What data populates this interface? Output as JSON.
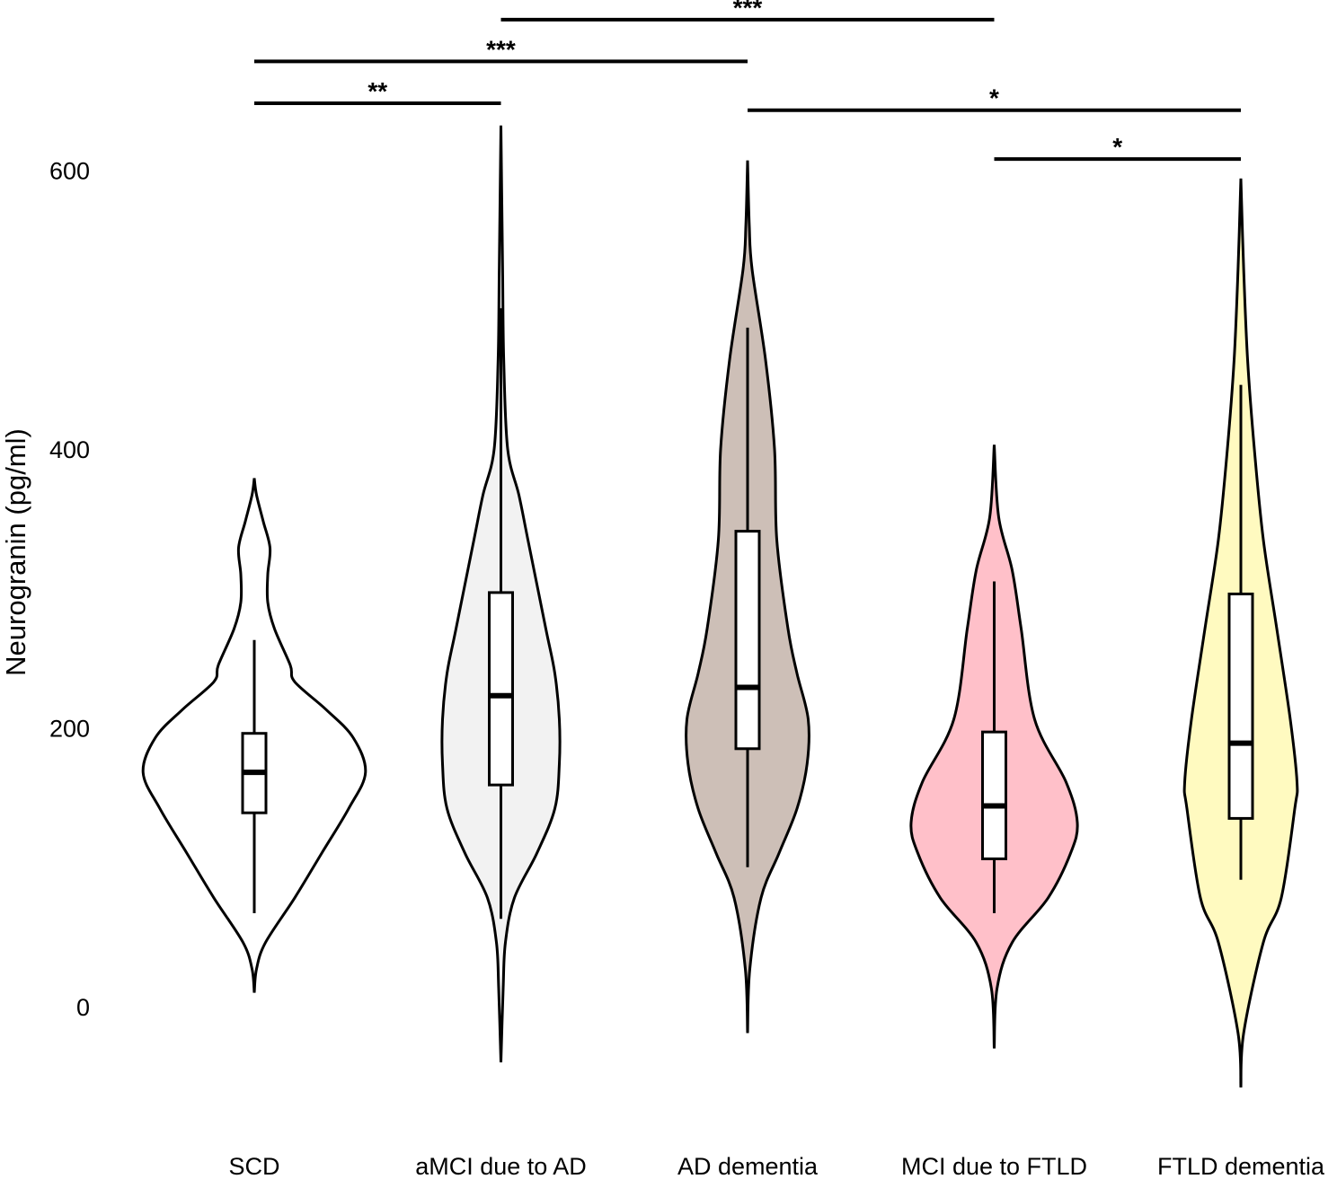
{
  "chart_data": {
    "type": "violin",
    "title": "",
    "xlabel": "",
    "ylabel": "Neurogranin (pg/ml)",
    "ylim": [
      -70,
      690
    ],
    "yticks": [
      0,
      200,
      400,
      600
    ],
    "ytick_labels": [
      "0",
      "200",
      "400",
      "600"
    ],
    "grid": false,
    "categories": [
      "SCD",
      "aMCI due to AD",
      "AD dementia",
      "MCI due to FTLD",
      "FTLD dementia"
    ],
    "groups": [
      {
        "name": "SCD",
        "color": "#ffffff",
        "box": {
          "whisker_low": 67,
          "q1": 139,
          "median": 168,
          "q3": 196,
          "whisker_high": 263
        },
        "density": [
          [
            10,
            0
          ],
          [
            27,
            0.02
          ],
          [
            46,
            0.1
          ],
          [
            78,
            0.36
          ],
          [
            110,
            0.6
          ],
          [
            142,
            0.84
          ],
          [
            168,
            0.99
          ],
          [
            193,
            0.88
          ],
          [
            213,
            0.64
          ],
          [
            233,
            0.36
          ],
          [
            245,
            0.32
          ],
          [
            271,
            0.18
          ],
          [
            290,
            0.12
          ],
          [
            310,
            0.12
          ],
          [
            329,
            0.14
          ],
          [
            348,
            0.08
          ],
          [
            367,
            0.02
          ],
          [
            379,
            0
          ]
        ]
      },
      {
        "name": "aMCI due to AD",
        "color": "#f2f2f2",
        "box": {
          "whisker_low": 63,
          "q1": 159,
          "median": 223,
          "q3": 297,
          "whisker_high": 501
        },
        "density": [
          [
            -40,
            0
          ],
          [
            13,
            0.02
          ],
          [
            46,
            0.04
          ],
          [
            78,
            0.12
          ],
          [
            110,
            0.32
          ],
          [
            142,
            0.48
          ],
          [
            174,
            0.52
          ],
          [
            206,
            0.52
          ],
          [
            239,
            0.48
          ],
          [
            271,
            0.4
          ],
          [
            335,
            0.24
          ],
          [
            367,
            0.16
          ],
          [
            400,
            0.06
          ],
          [
            464,
            0.025
          ],
          [
            529,
            0.015
          ],
          [
            632,
            0
          ]
        ]
      },
      {
        "name": "AD dementia",
        "color": "#cdbfb7",
        "box": {
          "whisker_low": 100,
          "q1": 185,
          "median": 229,
          "q3": 341,
          "whisker_high": 487
        },
        "density": [
          [
            -19,
            0
          ],
          [
            27,
            0.02
          ],
          [
            78,
            0.12
          ],
          [
            110,
            0.28
          ],
          [
            142,
            0.44
          ],
          [
            174,
            0.53
          ],
          [
            206,
            0.54
          ],
          [
            239,
            0.44
          ],
          [
            271,
            0.36
          ],
          [
            335,
            0.26
          ],
          [
            400,
            0.24
          ],
          [
            464,
            0.16
          ],
          [
            529,
            0.04
          ],
          [
            561,
            0.015
          ],
          [
            607,
            0
          ]
        ]
      },
      {
        "name": "MCI due to FTLD",
        "color": "#ffc0c9",
        "box": {
          "whisker_low": 67,
          "q1": 106,
          "median": 144,
          "q3": 197,
          "whisker_high": 305
        },
        "density": [
          [
            -30,
            0
          ],
          [
            13,
            0.025
          ],
          [
            46,
            0.16
          ],
          [
            78,
            0.48
          ],
          [
            110,
            0.68
          ],
          [
            132,
            0.74
          ],
          [
            161,
            0.64
          ],
          [
            206,
            0.36
          ],
          [
            271,
            0.24
          ],
          [
            313,
            0.16
          ],
          [
            351,
            0.04
          ],
          [
            403,
            0
          ]
        ]
      },
      {
        "name": "FTLD dementia",
        "color": "#fffac0",
        "box": {
          "whisker_low": 91,
          "q1": 135,
          "median": 189,
          "q3": 296,
          "whisker_high": 446
        },
        "density": [
          [
            -58,
            0
          ],
          [
            -19,
            0.025
          ],
          [
            46,
            0.2
          ],
          [
            78,
            0.36
          ],
          [
            142,
            0.48
          ],
          [
            161,
            0.5
          ],
          [
            206,
            0.44
          ],
          [
            271,
            0.32
          ],
          [
            335,
            0.2
          ],
          [
            400,
            0.12
          ],
          [
            464,
            0.06
          ],
          [
            529,
            0.025
          ],
          [
            594,
            0
          ]
        ]
      }
    ],
    "significance": [
      {
        "from": "SCD",
        "to": "aMCI due to AD",
        "label": "**",
        "height": 648
      },
      {
        "from": "SCD",
        "to": "AD dementia",
        "label": "***",
        "height": 678
      },
      {
        "from": "aMCI due to AD",
        "to": "MCI due to FTLD",
        "label": "***",
        "height": 708
      },
      {
        "from": "AD dementia",
        "to": "FTLD dementia",
        "label": "*",
        "height": 643
      },
      {
        "from": "MCI due to FTLD",
        "to": "FTLD dementia",
        "label": "*",
        "height": 608
      }
    ]
  }
}
